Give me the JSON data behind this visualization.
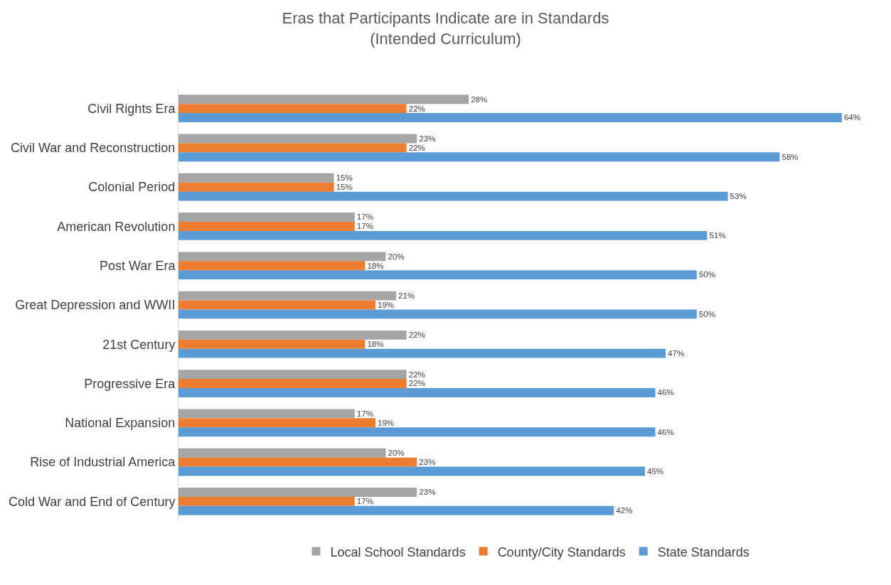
{
  "chart_data": {
    "type": "bar",
    "orientation": "horizontal",
    "title": "Eras that Participants Indicate are in Standards\n(Intended Curriculum)",
    "categories": [
      "Civil Rights Era",
      "Civil War and Reconstruction",
      "Colonial Period",
      "American Revolution",
      "Post War Era",
      "Great Depression and WWII",
      "21st Century",
      "Progressive Era",
      "National Expansion",
      "Rise of Industrial America",
      "Cold War and End of Century"
    ],
    "series": [
      {
        "name": "Local School Standards",
        "color": "#a5a5a5",
        "values": [
          28,
          23,
          15,
          17,
          20,
          21,
          22,
          22,
          17,
          20,
          23
        ],
        "value_labels": [
          "28%",
          "23%",
          "15%",
          "17%",
          "20%",
          "21%",
          "22%",
          "22%",
          "17%",
          "20%",
          "23%"
        ]
      },
      {
        "name": "County/City Standards",
        "color": "#ed7d31",
        "values": [
          22,
          22,
          15,
          17,
          18,
          19,
          18,
          22,
          19,
          23,
          17
        ],
        "value_labels": [
          "22%",
          "22%",
          "15%",
          "17%",
          "18%",
          "19%",
          "18%",
          "22%",
          "19%",
          "23%",
          "17%"
        ]
      },
      {
        "name": "State Standards",
        "color": "#5b9bd5",
        "values": [
          64,
          58,
          53,
          51,
          50,
          50,
          47,
          46,
          46,
          45,
          42
        ],
        "value_labels": [
          "64%",
          "58%",
          "53%",
          "51%",
          "50%",
          "50%",
          "47%",
          "46%",
          "46%",
          "45%",
          "42%"
        ]
      }
    ],
    "legend": "bottom"
  }
}
